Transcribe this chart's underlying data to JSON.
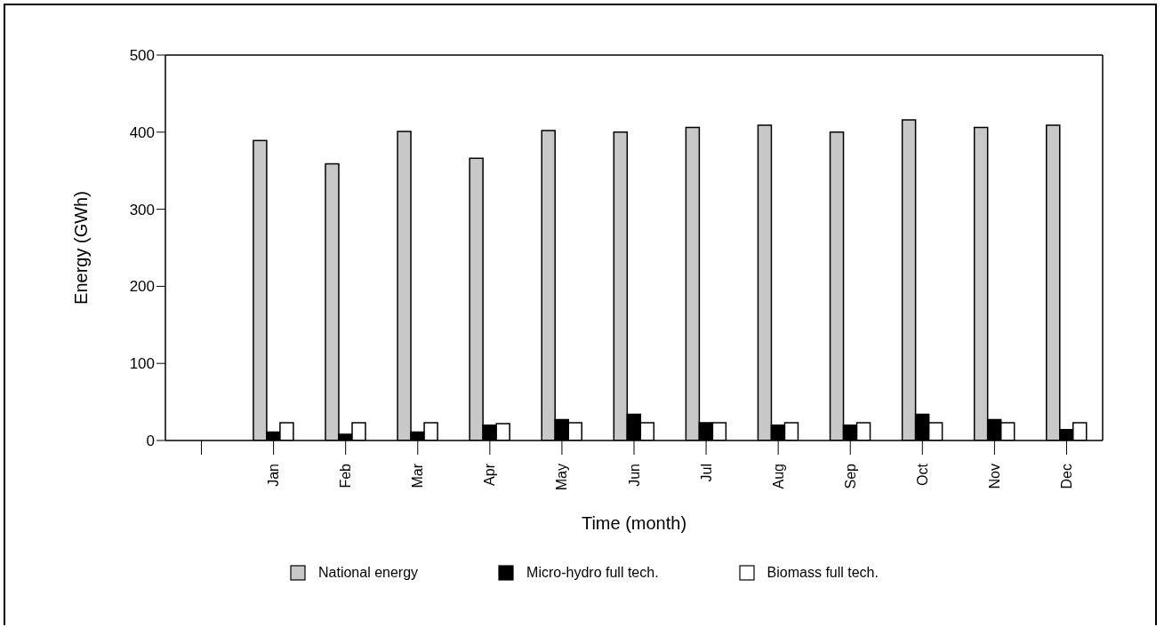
{
  "chart_data": {
    "type": "bar",
    "xlabel": "Time (month)",
    "ylabel": "Energy (GWh)",
    "categories": [
      null,
      "Jan",
      "Feb",
      "Mar",
      "Apr",
      "May",
      "Jun",
      "Jul",
      "Aug",
      "Sep",
      "Oct",
      "Nov",
      "Dec"
    ],
    "series": [
      {
        "name": "National energy",
        "color": "#c8c8c8",
        "values": [
          null,
          389,
          359,
          401,
          366,
          402,
          400,
          406,
          409,
          400,
          416,
          406,
          409
        ]
      },
      {
        "name": "Micro-hydro full tech.",
        "color": "#000000",
        "values": [
          null,
          11,
          8,
          11,
          20,
          27,
          34,
          23,
          20,
          20,
          34,
          27,
          14
        ]
      },
      {
        "name": "Biomass full tech.",
        "color": "#ffffff",
        "values": [
          null,
          23,
          23,
          23,
          22,
          23,
          23,
          23,
          23,
          23,
          23,
          23,
          23
        ]
      }
    ],
    "ylim": [
      0,
      500
    ],
    "yticks": [
      0,
      100,
      200,
      300,
      400,
      500
    ],
    "legend": "bottom"
  }
}
